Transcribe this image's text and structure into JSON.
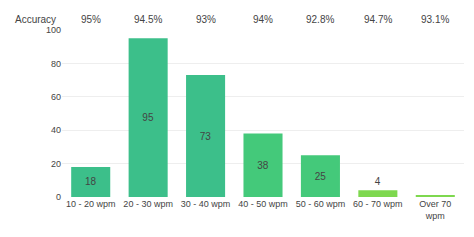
{
  "chart_data": {
    "type": "bar",
    "categories": [
      "10 - 20 wpm",
      "20 - 30 wpm",
      "30 - 40 wpm",
      "40 - 50 wpm",
      "50 - 60 wpm",
      "60 - 70 wpm",
      "Over 70\nwpm"
    ],
    "values": [
      18,
      95,
      73,
      38,
      25,
      4,
      1
    ],
    "colors": [
      "#3cbf8a",
      "#3cbf8a",
      "#3cbf8a",
      "#44c97a",
      "#44c97a",
      "#7ed84f",
      "#7ed84f"
    ],
    "data_labels": true,
    "value_labels": [
      "18",
      "95",
      "73",
      "38",
      "25",
      "4",
      null
    ],
    "annotations": [
      {
        "category": "10 - 20 wpm",
        "text": "95%"
      },
      {
        "category": "20 - 30 wpm",
        "text": "94.5%"
      },
      {
        "category": "30 - 40 wpm",
        "text": "93%"
      },
      {
        "category": "40 - 50 wpm",
        "text": "94%"
      },
      {
        "category": "50 - 60 wpm",
        "text": "92.8%"
      },
      {
        "category": "60 - 70 wpm",
        "text": "94.7%"
      },
      {
        "category": "Over 70\nwpm",
        "text": "93.1%"
      }
    ],
    "ylabel": "Accuracy",
    "ylim": [
      0,
      100
    ],
    "yticks": [
      0,
      20,
      40,
      60,
      80,
      100
    ],
    "grid": true
  }
}
